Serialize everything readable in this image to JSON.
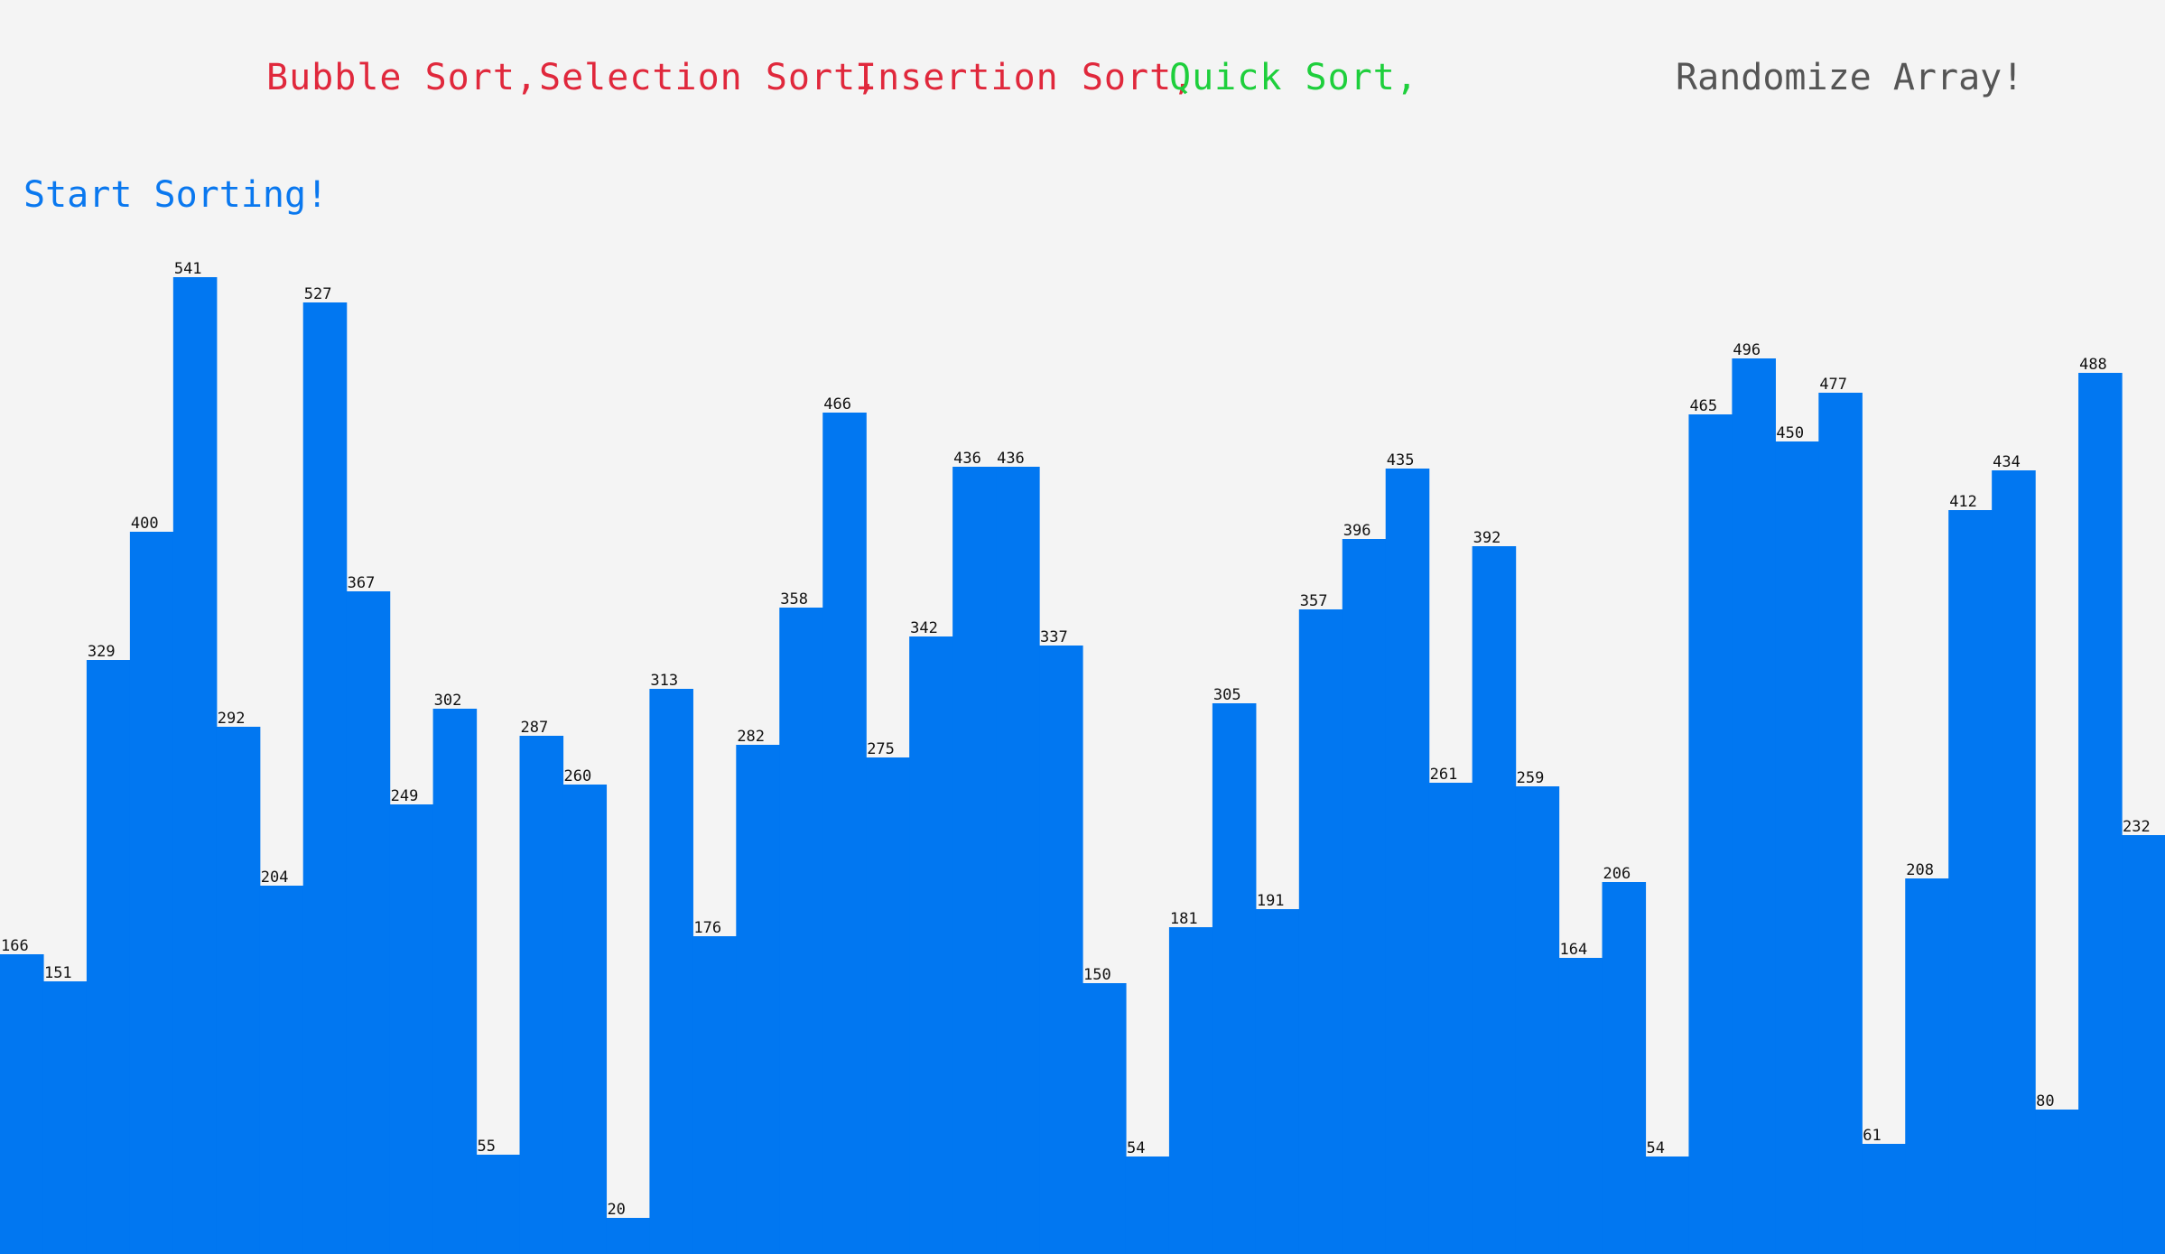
{
  "controls": {
    "algorithms": [
      {
        "label": "Bubble Sort,",
        "color": "#e0283c",
        "selected": false
      },
      {
        "label": "Selection Sort,",
        "color": "#e0283c",
        "selected": false
      },
      {
        "label": "Insertion Sort,",
        "color": "#e0283c",
        "selected": false
      },
      {
        "label": "Quick Sort,",
        "color": "#1ecf3c",
        "selected": true
      }
    ],
    "randomize_label": "Randomize Array!",
    "randomize_color": "#555555",
    "start_label": "Start Sorting!",
    "start_color": "#0a78ef"
  },
  "colors": {
    "bar": "#0177f1",
    "background": "#f4f4f4",
    "label": "#111111"
  },
  "chart_data": {
    "type": "bar",
    "values": [
      166,
      151,
      329,
      400,
      541,
      292,
      204,
      527,
      367,
      249,
      302,
      55,
      287,
      260,
      20,
      313,
      176,
      282,
      358,
      466,
      275,
      342,
      436,
      436,
      337,
      150,
      54,
      181,
      305,
      191,
      357,
      396,
      435,
      261,
      392,
      259,
      164,
      206,
      54,
      465,
      496,
      450,
      477,
      61,
      208,
      412,
      434,
      80,
      488,
      232
    ],
    "ylim": [
      0,
      541
    ],
    "labels_visible": true
  }
}
